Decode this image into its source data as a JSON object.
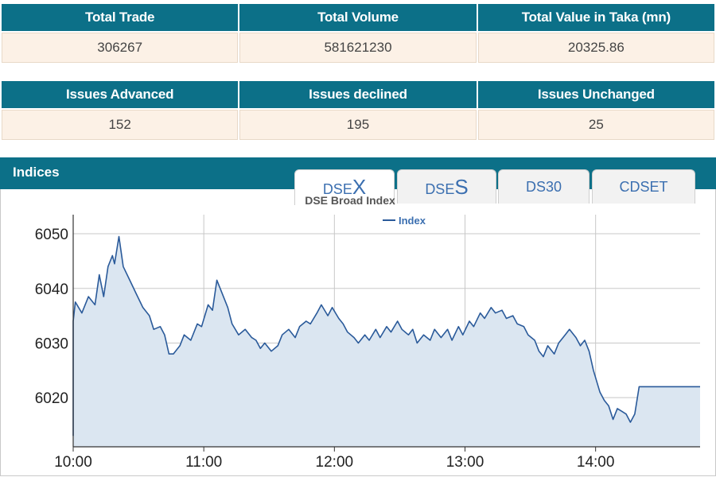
{
  "summary1": {
    "headers": [
      "Total Trade",
      "Total Volume",
      "Total Value in Taka (mn)"
    ],
    "values": [
      "306267",
      "581621230",
      "20325.86"
    ]
  },
  "summary2": {
    "headers": [
      "Issues Advanced",
      "Issues declined",
      "Issues Unchanged"
    ],
    "values": [
      "152",
      "195",
      "25"
    ]
  },
  "indices": {
    "title": "Indices",
    "tabs": [
      {
        "prefix": "DSE",
        "suffix": "X",
        "active": true
      },
      {
        "prefix": "DSE",
        "suffix": "S",
        "active": false
      },
      {
        "prefix": "DS30",
        "suffix": "",
        "active": false
      },
      {
        "prefix": "CDSET",
        "suffix": "",
        "active": false
      }
    ]
  },
  "chart_data": {
    "type": "area",
    "title": "DSE Broad Index",
    "legend": "top-center",
    "series": [
      {
        "name": "Index",
        "color": "#2a5a9a",
        "fill": "#dbe6f1",
        "points": [
          [
            "10:00",
            6013.0
          ],
          [
            "10:00",
            6034.0
          ],
          [
            "10:01",
            6037.5
          ],
          [
            "10:04",
            6035.5
          ],
          [
            "10:07",
            6038.5
          ],
          [
            "10:10",
            6037.0
          ],
          [
            "10:12",
            6042.5
          ],
          [
            "10:14",
            6038.5
          ],
          [
            "10:16",
            6044.0
          ],
          [
            "10:18",
            6046.0
          ],
          [
            "10:19",
            6044.5
          ],
          [
            "10:21",
            6049.5
          ],
          [
            "10:23",
            6044.0
          ],
          [
            "10:26",
            6041.5
          ],
          [
            "10:29",
            6039.0
          ],
          [
            "10:32",
            6036.5
          ],
          [
            "10:35",
            6035.0
          ],
          [
            "10:37",
            6032.5
          ],
          [
            "10:40",
            6033.0
          ],
          [
            "10:42",
            6031.5
          ],
          [
            "10:44",
            6028.0
          ],
          [
            "10:46",
            6028.0
          ],
          [
            "10:49",
            6029.5
          ],
          [
            "10:51",
            6031.5
          ],
          [
            "10:54",
            6030.5
          ],
          [
            "10:57",
            6033.5
          ],
          [
            "10:59",
            6033.0
          ],
          [
            "11:02",
            6037.0
          ],
          [
            "11:04",
            6036.0
          ],
          [
            "11:06",
            6041.5
          ],
          [
            "11:08",
            6039.5
          ],
          [
            "11:11",
            6036.5
          ],
          [
            "11:13",
            6033.5
          ],
          [
            "11:16",
            6031.5
          ],
          [
            "11:19",
            6032.5
          ],
          [
            "11:22",
            6031.0
          ],
          [
            "11:24",
            6030.5
          ],
          [
            "11:26",
            6029.0
          ],
          [
            "11:28",
            6030.0
          ],
          [
            "11:31",
            6028.5
          ],
          [
            "11:34",
            6029.5
          ],
          [
            "11:36",
            6031.5
          ],
          [
            "11:39",
            6032.5
          ],
          [
            "11:42",
            6031.0
          ],
          [
            "11:44",
            6033.0
          ],
          [
            "11:47",
            6034.0
          ],
          [
            "11:49",
            6033.5
          ],
          [
            "11:52",
            6035.5
          ],
          [
            "11:54",
            6037.0
          ],
          [
            "11:57",
            6035.0
          ],
          [
            "11:59",
            6036.5
          ],
          [
            "12:02",
            6034.5
          ],
          [
            "12:04",
            6033.5
          ],
          [
            "12:06",
            6032.0
          ],
          [
            "12:09",
            6031.0
          ],
          [
            "12:11",
            6030.0
          ],
          [
            "12:14",
            6031.5
          ],
          [
            "12:16",
            6030.5
          ],
          [
            "12:19",
            6032.5
          ],
          [
            "12:21",
            6031.0
          ],
          [
            "12:24",
            6033.0
          ],
          [
            "12:26",
            6032.0
          ],
          [
            "12:29",
            6034.0
          ],
          [
            "12:31",
            6032.5
          ],
          [
            "12:34",
            6031.5
          ],
          [
            "12:36",
            6032.5
          ],
          [
            "12:38",
            6030.0
          ],
          [
            "12:41",
            6031.5
          ],
          [
            "12:44",
            6030.5
          ],
          [
            "12:46",
            6032.5
          ],
          [
            "12:49",
            6031.0
          ],
          [
            "12:52",
            6032.5
          ],
          [
            "12:54",
            6030.5
          ],
          [
            "12:57",
            6033.0
          ],
          [
            "12:59",
            6031.5
          ],
          [
            "13:02",
            6034.0
          ],
          [
            "13:04",
            6033.0
          ],
          [
            "13:07",
            6035.5
          ],
          [
            "13:09",
            6034.5
          ],
          [
            "13:12",
            6036.5
          ],
          [
            "13:14",
            6035.5
          ],
          [
            "13:17",
            6036.0
          ],
          [
            "13:19",
            6034.5
          ],
          [
            "13:22",
            6035.0
          ],
          [
            "13:24",
            6033.5
          ],
          [
            "13:27",
            6033.0
          ],
          [
            "13:29",
            6031.5
          ],
          [
            "13:32",
            6030.5
          ],
          [
            "13:34",
            6028.5
          ],
          [
            "13:36",
            6027.5
          ],
          [
            "13:38",
            6029.5
          ],
          [
            "13:41",
            6028.0
          ],
          [
            "13:43",
            6030.0
          ],
          [
            "13:46",
            6031.5
          ],
          [
            "13:48",
            6032.5
          ],
          [
            "13:51",
            6031.0
          ],
          [
            "13:53",
            6029.5
          ],
          [
            "13:55",
            6030.5
          ],
          [
            "13:57",
            6028.5
          ],
          [
            "13:59",
            6025.0
          ],
          [
            "14:02",
            6021.0
          ],
          [
            "14:04",
            6019.5
          ],
          [
            "14:06",
            6018.5
          ],
          [
            "14:08",
            6016.0
          ],
          [
            "14:10",
            6018.0
          ],
          [
            "14:12",
            6017.5
          ],
          [
            "14:14",
            6017.0
          ],
          [
            "14:16",
            6015.5
          ],
          [
            "14:18",
            6017.0
          ],
          [
            "14:20",
            6022.0
          ],
          [
            "14:48",
            6022.0
          ]
        ]
      }
    ],
    "x_ticks": [
      "10:00",
      "11:00",
      "12:00",
      "13:00",
      "14:00"
    ],
    "y_ticks": [
      6020,
      6030,
      6040,
      6050
    ],
    "xlim": [
      "10:00",
      "14:48"
    ],
    "ylim": [
      6011,
      6053.5
    ],
    "grid": true
  }
}
